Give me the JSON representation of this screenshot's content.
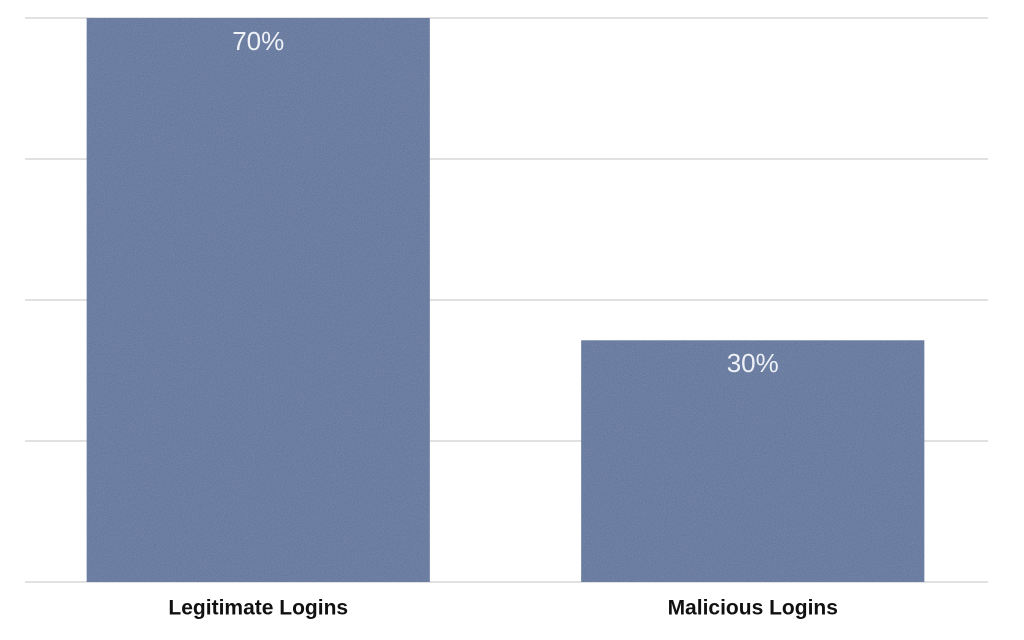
{
  "chart_data": {
    "type": "bar",
    "categories": [
      "Legitimate Logins",
      "Malicious Logins"
    ],
    "values": [
      70,
      30
    ],
    "value_labels": [
      "70%",
      "30%"
    ],
    "color": "#59709a",
    "ylim": [
      0,
      70
    ],
    "yticks": [
      0,
      17.5,
      35,
      52.5,
      70
    ],
    "grid": true
  }
}
